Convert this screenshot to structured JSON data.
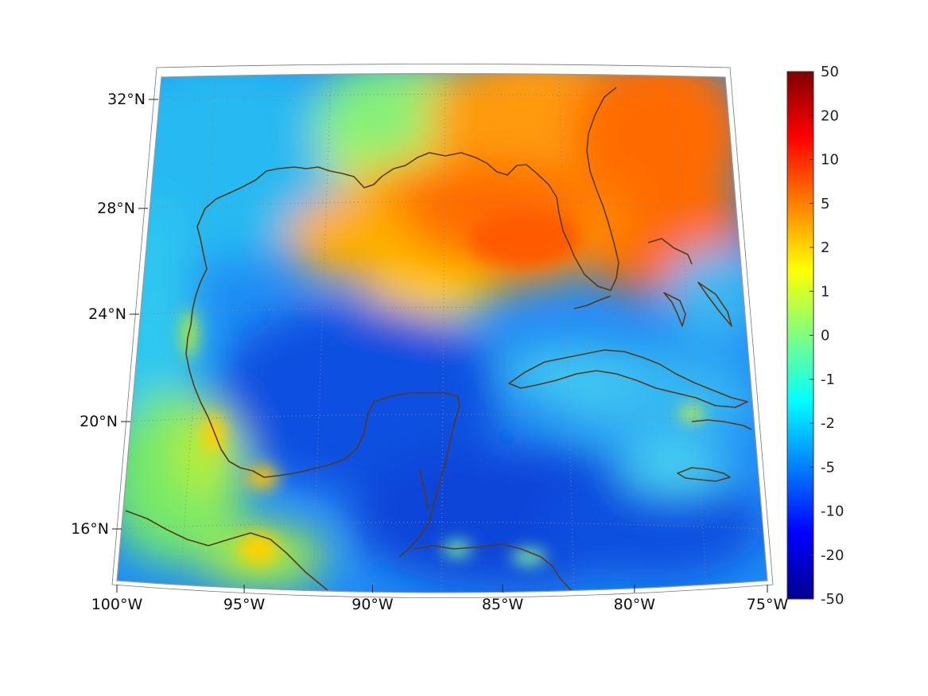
{
  "map": {
    "projection": "conic",
    "lon_range": [
      -100,
      -75
    ],
    "lat_range": [
      14,
      33
    ],
    "graticule": "dotted",
    "coastline_color": "#5a3a14",
    "lon_labels": [
      {
        "lon": -100,
        "text": "100°W"
      },
      {
        "lon": -95,
        "text": "95°W"
      },
      {
        "lon": -90,
        "text": "90°W"
      },
      {
        "lon": -85,
        "text": "85°W"
      },
      {
        "lon": -80,
        "text": "80°W"
      },
      {
        "lon": -75,
        "text": "75°W"
      }
    ],
    "lat_labels": [
      {
        "lat": 32,
        "text": "32°N"
      },
      {
        "lat": 28,
        "text": "28°N"
      },
      {
        "lat": 24,
        "text": "24°N"
      },
      {
        "lat": 20,
        "text": "20°N"
      },
      {
        "lat": 16,
        "text": "16°N"
      }
    ]
  },
  "colorbar": {
    "colormap": "jet",
    "labels": [
      "50",
      "20",
      "10",
      "5",
      "2",
      "1",
      "0",
      "-1",
      "-2",
      "-5",
      "-10",
      "-20",
      "-50"
    ]
  }
}
